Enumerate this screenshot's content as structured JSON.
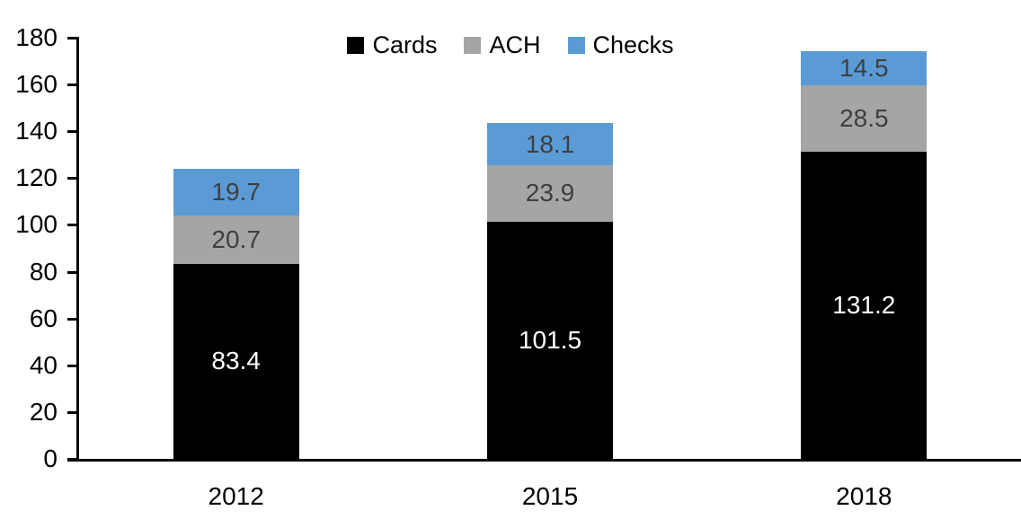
{
  "chart_data": {
    "type": "bar",
    "stacked": true,
    "title": "",
    "xlabel": "",
    "ylabel": "",
    "categories": [
      "2012",
      "2015",
      "2018"
    ],
    "series": [
      {
        "name": "Cards",
        "color": "#000000",
        "label_color": "#FFFFFF",
        "values": [
          83.4,
          101.5,
          131.2
        ]
      },
      {
        "name": "ACH",
        "color": "#A5A5A5",
        "label_color": "#3F3F3F",
        "values": [
          20.7,
          23.9,
          28.5
        ]
      },
      {
        "name": "Checks",
        "color": "#5B9BD5",
        "label_color": "#3F3F3F",
        "values": [
          19.7,
          18.1,
          14.5
        ]
      }
    ],
    "value_label_decimals": 1,
    "ylim": [
      0,
      180
    ],
    "yticks": [
      0,
      20,
      40,
      60,
      80,
      100,
      120,
      140,
      160,
      180
    ],
    "legend_position": "top-center",
    "grid": false,
    "axis_color": "#000000",
    "background_color": "#FFFFFF"
  }
}
